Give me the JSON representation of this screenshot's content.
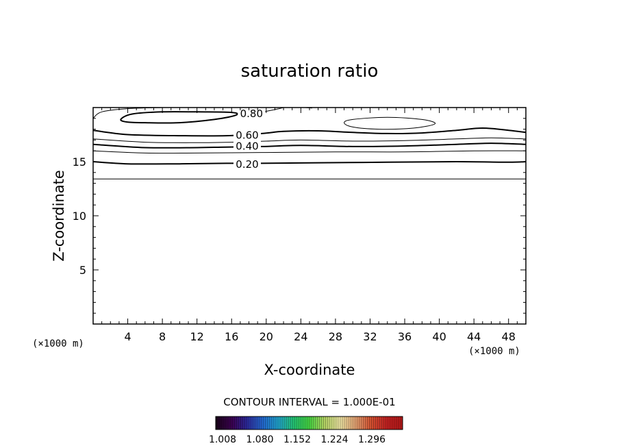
{
  "chart_data": {
    "type": "contour",
    "title": "saturation ratio",
    "xlabel": "X-coordinate",
    "ylabel": "Z-coordinate",
    "x_unit_left": "(×1000 m)",
    "x_unit_right": "(×1000 m)",
    "xlim": [
      0,
      50
    ],
    "ylim": [
      0,
      20
    ],
    "x_ticks": [
      4,
      8,
      12,
      16,
      20,
      24,
      28,
      32,
      36,
      40,
      44,
      48
    ],
    "y_ticks": [
      5,
      10,
      15
    ],
    "x_minor_step": 1,
    "y_minor_step": 1,
    "contour_interval_text": "CONTOUR INTERVAL = 1.000E-01",
    "contour_labels": [
      {
        "text": "0.80",
        "x": 18.3,
        "y": 19.5
      },
      {
        "text": "0.60",
        "x": 17.8,
        "y": 17.5
      },
      {
        "text": "0.40",
        "x": 17.8,
        "y": 16.5
      },
      {
        "text": "0.20",
        "x": 17.8,
        "y": 14.8
      }
    ],
    "contours": [
      {
        "level": 0.1,
        "bold": false,
        "points": [
          [
            0,
            13.4
          ],
          [
            10,
            13.4
          ],
          [
            20,
            13.4
          ],
          [
            30,
            13.4
          ],
          [
            40,
            13.4
          ],
          [
            50,
            13.4
          ]
        ]
      },
      {
        "level": 0.2,
        "bold": true,
        "points": [
          [
            0,
            15.0
          ],
          [
            4,
            14.8
          ],
          [
            10,
            14.8
          ],
          [
            15.4,
            14.85
          ],
          [
            19.5,
            14.85
          ],
          [
            26,
            14.9
          ],
          [
            34,
            14.95
          ],
          [
            42,
            15.0
          ],
          [
            48,
            14.95
          ],
          [
            50,
            15.0
          ]
        ]
      },
      {
        "level": 0.3,
        "bold": false,
        "points": [
          [
            0,
            16.0
          ],
          [
            6,
            15.8
          ],
          [
            12,
            15.8
          ],
          [
            20,
            15.85
          ],
          [
            28,
            15.9
          ],
          [
            36,
            15.9
          ],
          [
            44,
            16.0
          ],
          [
            50,
            16.0
          ]
        ]
      },
      {
        "level": 0.4,
        "bold": true,
        "points": [
          [
            0,
            16.6
          ],
          [
            6,
            16.3
          ],
          [
            12,
            16.3
          ],
          [
            15.4,
            16.35
          ],
          [
            19.5,
            16.4
          ],
          [
            24,
            16.5
          ],
          [
            30,
            16.4
          ],
          [
            36,
            16.45
          ],
          [
            42,
            16.6
          ],
          [
            46,
            16.7
          ],
          [
            50,
            16.6
          ]
        ]
      },
      {
        "level": 0.5,
        "bold": false,
        "points": [
          [
            0,
            17.1
          ],
          [
            6,
            16.8
          ],
          [
            12,
            16.75
          ],
          [
            16,
            16.8
          ],
          [
            20,
            16.9
          ],
          [
            24,
            17.0
          ],
          [
            30,
            16.9
          ],
          [
            36,
            16.95
          ],
          [
            42,
            17.1
          ],
          [
            46,
            17.2
          ],
          [
            50,
            17.1
          ]
        ]
      },
      {
        "level": 0.6,
        "bold": true,
        "points": [
          [
            0,
            17.9
          ],
          [
            4,
            17.5
          ],
          [
            10,
            17.4
          ],
          [
            15.4,
            17.4
          ],
          [
            19.5,
            17.6
          ],
          [
            22,
            17.8
          ],
          [
            26,
            17.85
          ],
          [
            30,
            17.7
          ],
          [
            34,
            17.6
          ],
          [
            38,
            17.65
          ],
          [
            42,
            17.9
          ],
          [
            45,
            18.1
          ],
          [
            48,
            17.9
          ],
          [
            50,
            17.7
          ]
        ]
      },
      {
        "level": 0.7,
        "bold": false,
        "closed": true,
        "points": [
          [
            29,
            18.6
          ],
          [
            30,
            18.9
          ],
          [
            34,
            19.1
          ],
          [
            38,
            18.9
          ],
          [
            39.5,
            18.5
          ],
          [
            37,
            18.1
          ],
          [
            33,
            18.0
          ],
          [
            30,
            18.2
          ]
        ]
      },
      {
        "level": 0.7,
        "bold": false,
        "points": [
          [
            0,
            19.0
          ],
          [
            1,
            19.6
          ],
          [
            4,
            19.9
          ],
          [
            8,
            20.0
          ]
        ]
      },
      {
        "level": 0.8,
        "bold": true,
        "closed": true,
        "points": [
          [
            3.2,
            18.9
          ],
          [
            4.5,
            19.4
          ],
          [
            8,
            19.6
          ],
          [
            12,
            19.6
          ],
          [
            16,
            19.55
          ],
          [
            16.5,
            19.3
          ],
          [
            14,
            18.9
          ],
          [
            10,
            18.6
          ],
          [
            6,
            18.6
          ],
          [
            4,
            18.65
          ]
        ]
      },
      {
        "level": 0.8,
        "bold": false,
        "points": [
          [
            19.7,
            19.6
          ],
          [
            21.5,
            19.9
          ],
          [
            22,
            20.0
          ]
        ]
      },
      {
        "level": 0.8,
        "bold": false,
        "points": [
          [
            24.5,
            20.0
          ],
          [
            25.3,
            19.95
          ]
        ]
      }
    ],
    "colorbar": {
      "labels": [
        "1.008",
        "1.080",
        "1.152",
        "1.224",
        "1.296"
      ],
      "colors": [
        "#1a001a",
        "#3a0050",
        "#2a2a9a",
        "#2266cc",
        "#1fa0c8",
        "#22c070",
        "#44d040",
        "#b0d060",
        "#e8e0a0",
        "#e0a070",
        "#d05030",
        "#c02020",
        "#b01818"
      ]
    }
  }
}
